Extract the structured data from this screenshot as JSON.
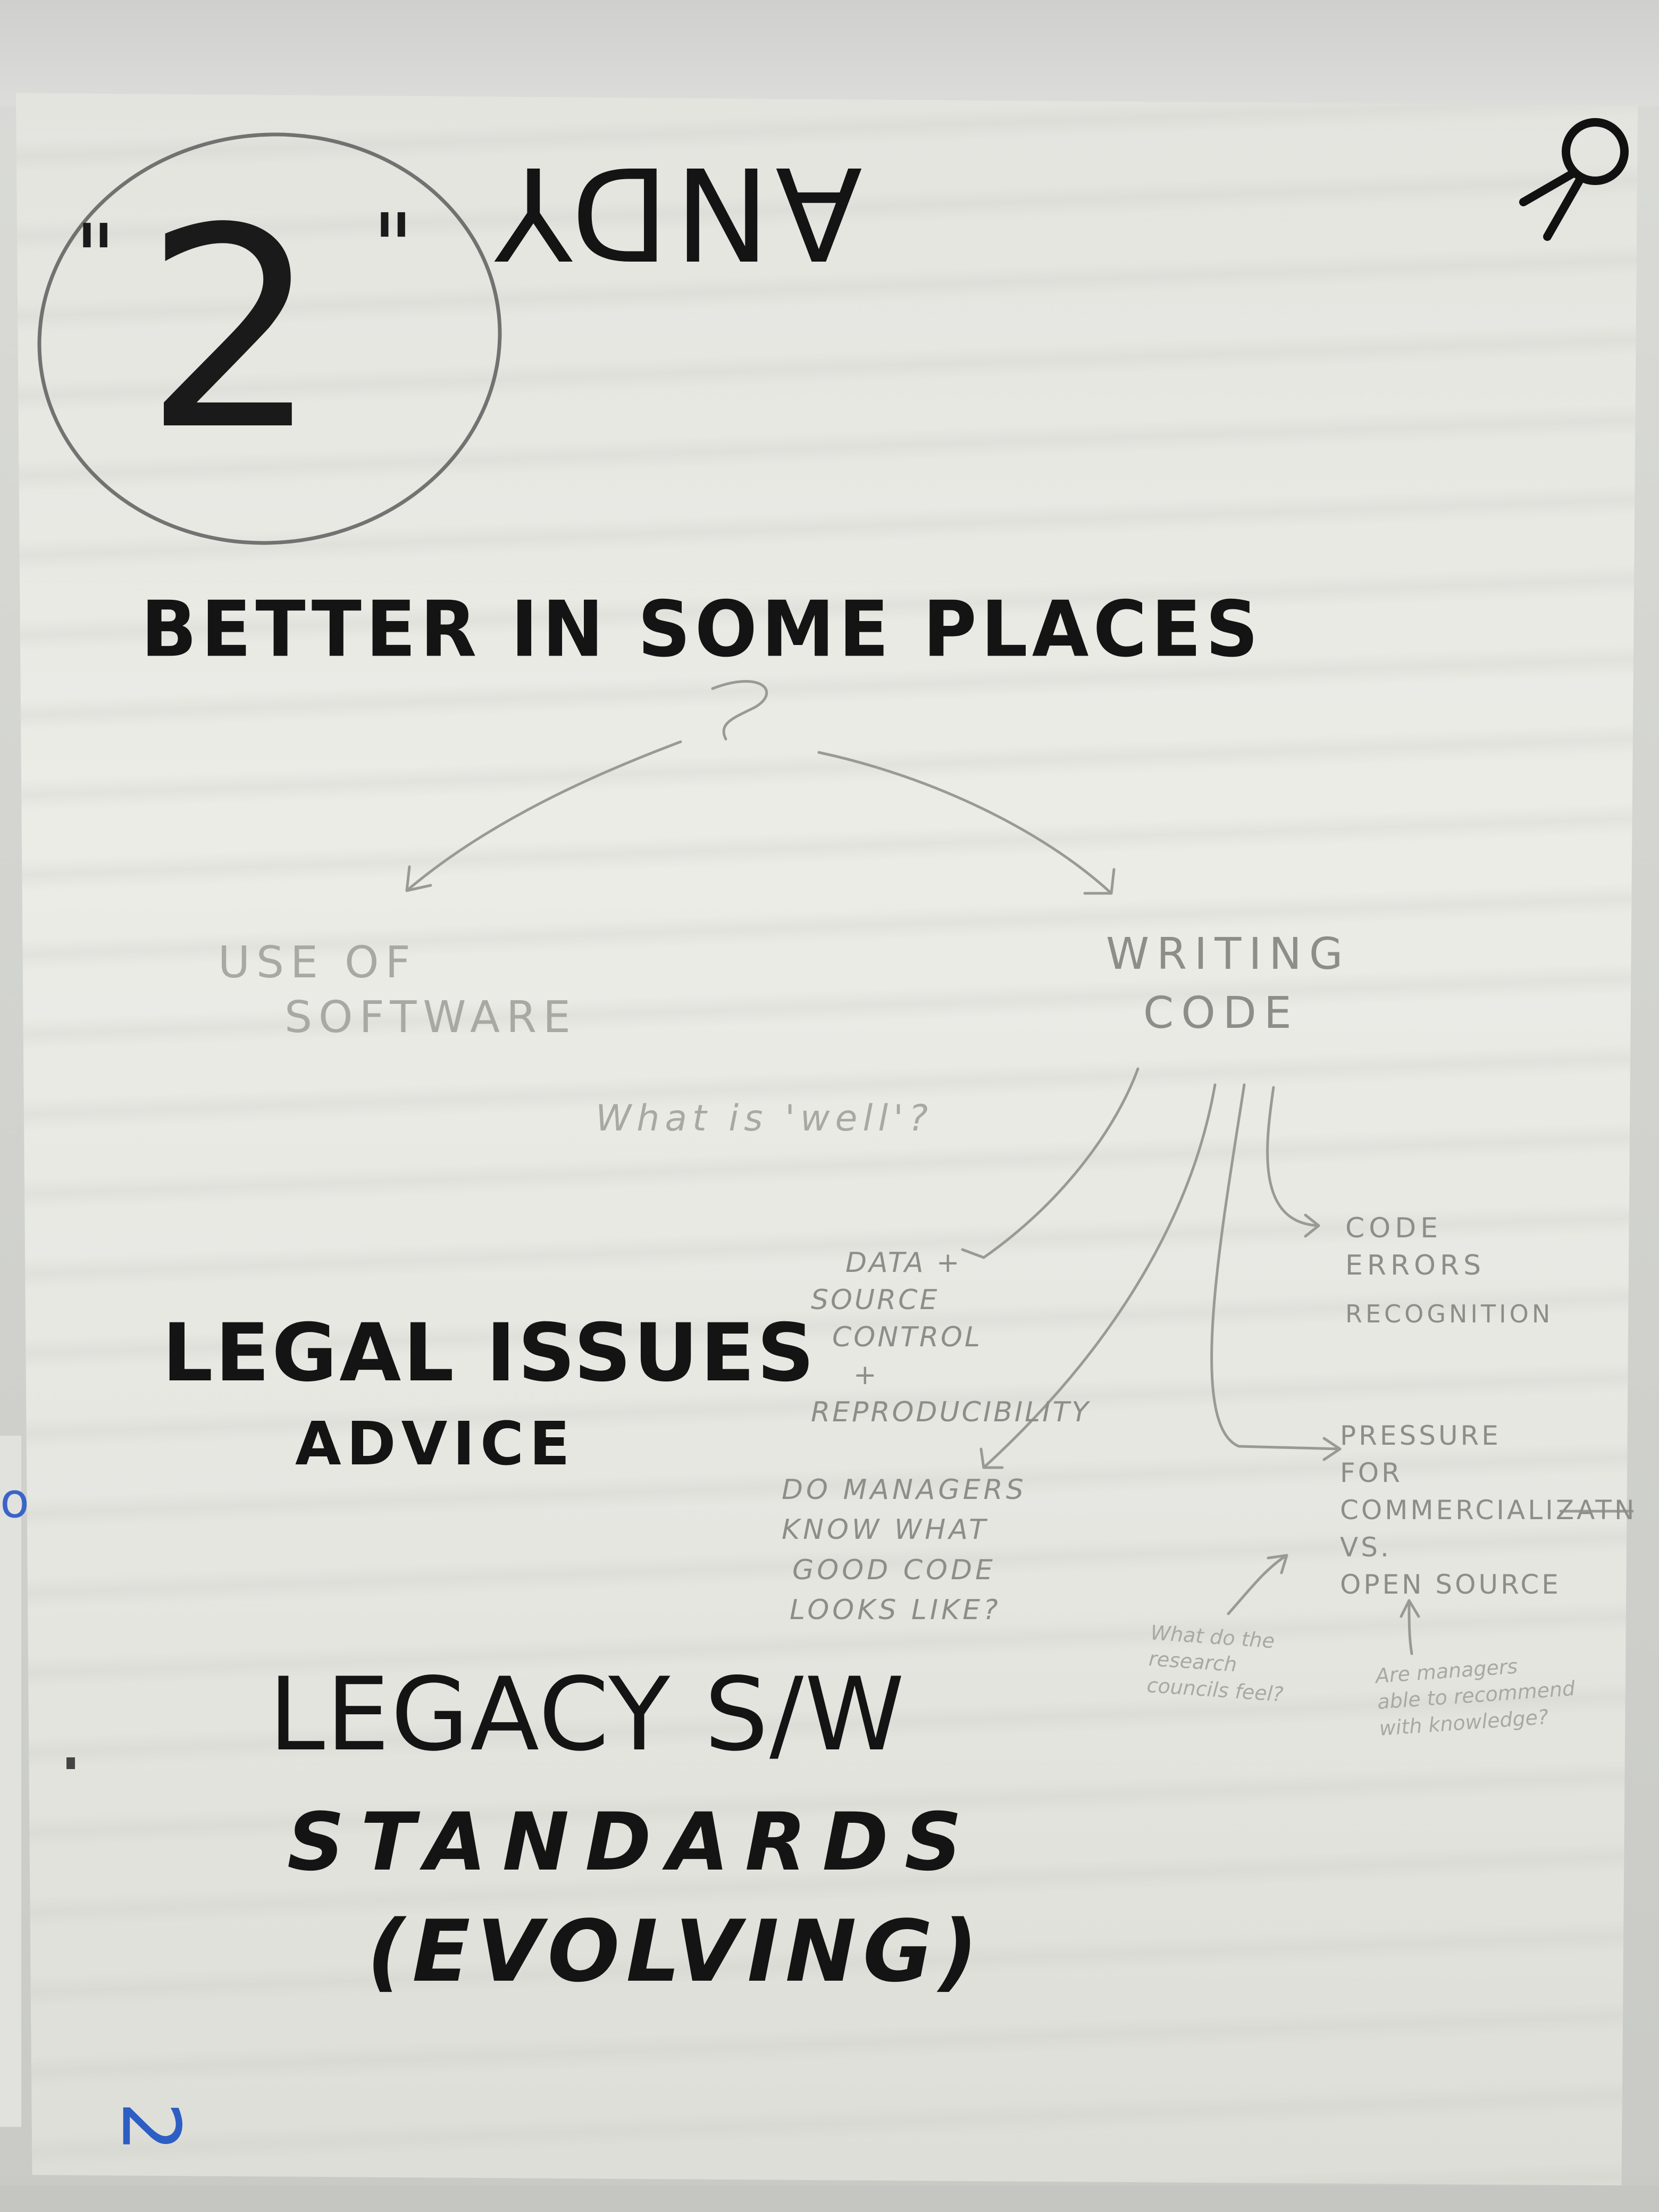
{
  "sheet_number": "2",
  "corner_number": "2",
  "author_name": "ANDY",
  "quote_left": "\"",
  "quote_right": "\"",
  "title": "BETTER IN SOME PLACES",
  "branches": {
    "left": [
      "USE OF",
      "SOFTWARE"
    ],
    "right": [
      "WRITING",
      "CODE"
    ]
  },
  "question_well": "What is 'well'?",
  "code_children": {
    "data": [
      "DATA +",
      "SOURCE",
      "CONTROL",
      "+",
      "REPRODUCIBILITY"
    ],
    "errors": [
      "CODE",
      "ERRORS",
      "RECOGNITION"
    ],
    "managers": [
      "DO MANAGERS",
      "KNOW WHAT",
      "GOOD CODE",
      "LOOKS LIKE?"
    ],
    "pressure": [
      "PRESSURE",
      "FOR",
      "COMMERCIALIZATN",
      "VS.",
      "OPEN SOURCE"
    ]
  },
  "side_questions": {
    "research_councils": [
      "What do the",
      "research",
      "councils feel?"
    ],
    "managers_recommend": [
      "Are managers",
      "able to recommend",
      "with knowledge?"
    ]
  },
  "topics": {
    "legal": "LEGAL ISSUES",
    "advice": "ADVICE",
    "legacy": "LEGACY S/W",
    "standards": "STANDARDS",
    "evolving": "(EVOLVING)"
  },
  "edge_text": "on",
  "colors": {
    "marker": "#141414",
    "pencil": "#8d8d89",
    "blue_pen": "#2d5ec4",
    "paper": "#ecece7"
  },
  "icons": [
    "push-pin-icon"
  ]
}
